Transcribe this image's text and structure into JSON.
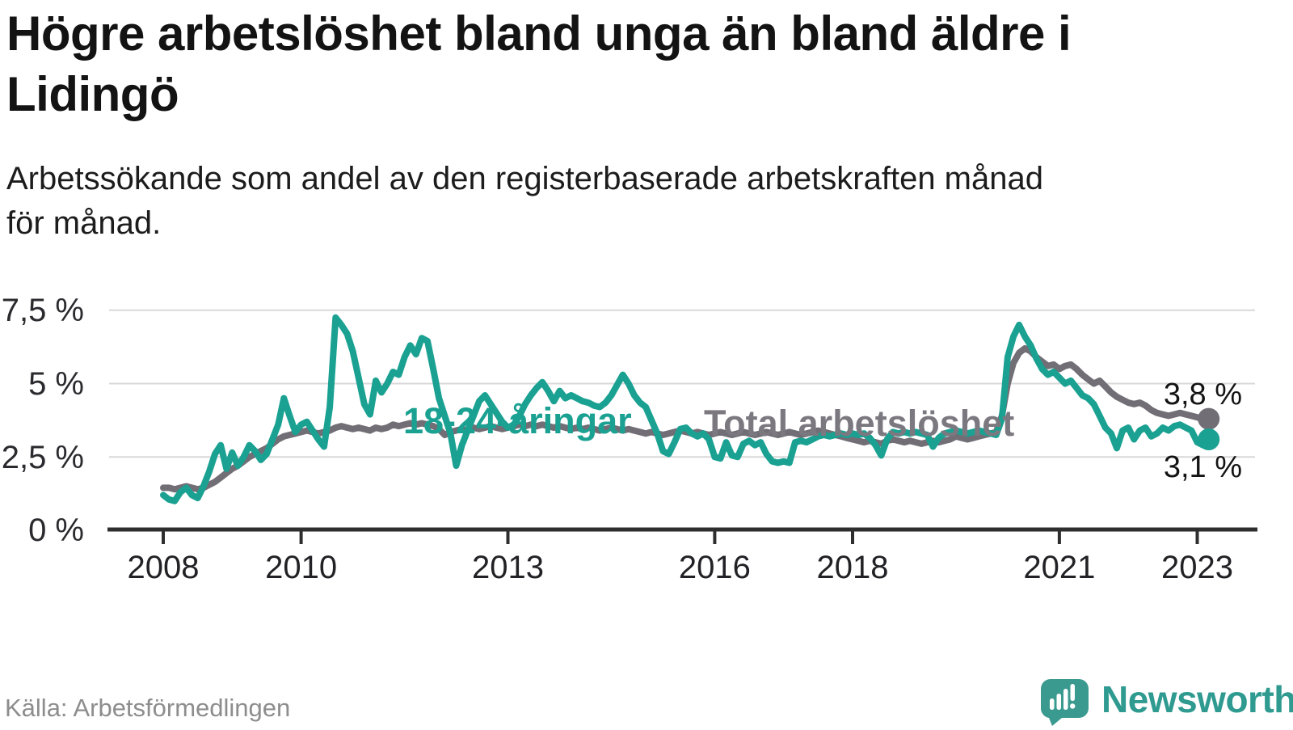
{
  "header": {
    "title": "Högre arbetslöshet bland unga än bland äldre i Lidingö",
    "title_lines": [
      "Högre arbetslöshet bland unga än bland äldre i",
      "Lidingö"
    ],
    "subtitle": "Arbetssökande som andel av den registerbaserade arbetskraften månad för månad.",
    "subtitle_lines": [
      "Arbetssökande som andel av den registerbaserade arbetskraften månad",
      "för månad."
    ]
  },
  "footer": {
    "source": "Källa: Arbetsförmedlingen",
    "brand": "Newsworthy",
    "brand_color": "#2f9a90",
    "logo_icon": "speech-bubble-bar-chart-exclamation"
  },
  "colors": {
    "youth_line": "#1aa192",
    "total_line": "#716e76",
    "total_label": "#7b7880",
    "gridline": "#d8d8d8",
    "axis": "#2e2e2e",
    "value_label": "#141414"
  },
  "chart_data": {
    "type": "line",
    "unit": "%",
    "frequency": "monthly",
    "start_month": "2008-01",
    "end_month": "2023-03",
    "grid": "horizontal",
    "legend_position": "inline-labels",
    "ylim": [
      0,
      8.1
    ],
    "y_tick_values": [
      7.5,
      5,
      2.5,
      0
    ],
    "y_tick_labels": [
      "7,5 %",
      "5 %",
      "2,5 %",
      "0 %"
    ],
    "x_tick_years": [
      2008,
      2010,
      2013,
      2016,
      2018,
      2021,
      2023
    ],
    "x_tick_labels": [
      "2008",
      "2010",
      "2013",
      "2016",
      "2018",
      "2021",
      "2023"
    ],
    "series": [
      {
        "name": "Total arbetslöshet",
        "color": "#716e76",
        "end_label": "3,8 %",
        "end_value": 3.8,
        "values": [
          1.45,
          1.45,
          1.4,
          1.45,
          1.5,
          1.45,
          1.4,
          1.45,
          1.55,
          1.65,
          1.8,
          1.95,
          2.1,
          2.2,
          2.35,
          2.5,
          2.6,
          2.7,
          2.8,
          2.95,
          3.1,
          3.2,
          3.25,
          3.3,
          3.35,
          3.4,
          3.35,
          3.3,
          3.35,
          3.4,
          3.5,
          3.55,
          3.5,
          3.45,
          3.5,
          3.45,
          3.4,
          3.5,
          3.45,
          3.5,
          3.6,
          3.55,
          3.6,
          3.65,
          3.6,
          3.65,
          3.6,
          3.55,
          3.45,
          3.25,
          3.35,
          3.4,
          3.45,
          3.4,
          3.5,
          3.45,
          3.5,
          3.55,
          3.5,
          3.45,
          3.5,
          3.55,
          3.6,
          3.55,
          3.6,
          3.55,
          3.6,
          3.55,
          3.5,
          3.55,
          3.5,
          3.45,
          3.5,
          3.45,
          3.5,
          3.45,
          3.4,
          3.45,
          3.5,
          3.45,
          3.4,
          3.45,
          3.4,
          3.35,
          3.3,
          3.35,
          3.3,
          3.25,
          3.3,
          3.35,
          3.4,
          3.35,
          3.3,
          3.35,
          3.3,
          3.25,
          3.3,
          3.35,
          3.3,
          3.25,
          3.3,
          3.35,
          3.3,
          3.25,
          3.3,
          3.35,
          3.3,
          3.25,
          3.3,
          3.35,
          3.3,
          3.25,
          3.3,
          3.35,
          3.4,
          3.35,
          3.3,
          3.25,
          3.2,
          3.15,
          3.1,
          3.05,
          3.0,
          3.05,
          3.0,
          2.95,
          3.05,
          3.1,
          3.05,
          3.0,
          3.05,
          3.0,
          2.95,
          3.0,
          3.05,
          3.0,
          3.05,
          3.1,
          3.2,
          3.15,
          3.1,
          3.15,
          3.2,
          3.25,
          3.3,
          3.35,
          3.9,
          5.0,
          5.7,
          6.05,
          6.2,
          6.1,
          5.9,
          5.75,
          5.6,
          5.65,
          5.5,
          5.6,
          5.65,
          5.5,
          5.3,
          5.15,
          5.0,
          5.1,
          4.9,
          4.7,
          4.55,
          4.45,
          4.35,
          4.3,
          4.35,
          4.25,
          4.1,
          4.0,
          3.95,
          3.9,
          3.95,
          4.0,
          3.95,
          3.9,
          3.85,
          3.8,
          3.8
        ]
      },
      {
        "name": "18-24-åringar",
        "color": "#1aa192",
        "end_label": "3,1 %",
        "end_value": 3.1,
        "values": [
          1.2,
          1.05,
          1.0,
          1.3,
          1.45,
          1.2,
          1.1,
          1.5,
          2.0,
          2.6,
          2.9,
          2.1,
          2.65,
          2.2,
          2.5,
          2.9,
          2.7,
          2.4,
          2.6,
          3.1,
          3.6,
          4.5,
          3.9,
          3.35,
          3.6,
          3.7,
          3.4,
          3.1,
          2.85,
          4.2,
          7.25,
          7.0,
          6.7,
          6.1,
          5.2,
          4.3,
          3.95,
          5.1,
          4.7,
          5.0,
          5.4,
          5.3,
          5.9,
          6.3,
          6.0,
          6.55,
          6.45,
          5.5,
          4.5,
          3.9,
          3.3,
          2.2,
          2.9,
          3.4,
          3.9,
          4.4,
          4.6,
          4.3,
          4.0,
          3.7,
          3.5,
          3.6,
          3.9,
          4.3,
          4.6,
          4.85,
          5.05,
          4.75,
          4.4,
          4.75,
          4.5,
          4.6,
          4.5,
          4.4,
          4.35,
          4.25,
          4.2,
          4.35,
          4.6,
          4.95,
          5.3,
          5.0,
          4.6,
          4.35,
          4.2,
          3.75,
          3.3,
          2.7,
          2.6,
          3.0,
          3.45,
          3.5,
          3.3,
          3.2,
          3.3,
          3.1,
          2.5,
          2.45,
          3.0,
          2.55,
          2.5,
          2.95,
          3.05,
          2.9,
          3.0,
          2.6,
          2.35,
          2.3,
          2.35,
          2.3,
          3.0,
          3.05,
          3.0,
          3.1,
          3.2,
          3.25,
          3.2,
          3.25,
          3.3,
          3.25,
          3.3,
          3.25,
          3.3,
          3.15,
          2.9,
          2.55,
          3.1,
          3.35,
          3.3,
          3.35,
          3.3,
          3.35,
          3.3,
          3.25,
          2.85,
          3.15,
          3.3,
          3.35,
          3.4,
          3.35,
          3.3,
          3.35,
          3.4,
          3.35,
          3.3,
          3.25,
          3.8,
          5.9,
          6.6,
          7.0,
          6.6,
          6.3,
          5.85,
          5.5,
          5.3,
          5.4,
          5.2,
          5.0,
          5.1,
          4.85,
          4.6,
          4.5,
          4.3,
          3.9,
          3.5,
          3.3,
          2.8,
          3.4,
          3.5,
          3.1,
          3.4,
          3.5,
          3.2,
          3.3,
          3.5,
          3.4,
          3.55,
          3.6,
          3.5,
          3.4,
          3.0,
          2.9,
          3.1
        ]
      }
    ]
  }
}
